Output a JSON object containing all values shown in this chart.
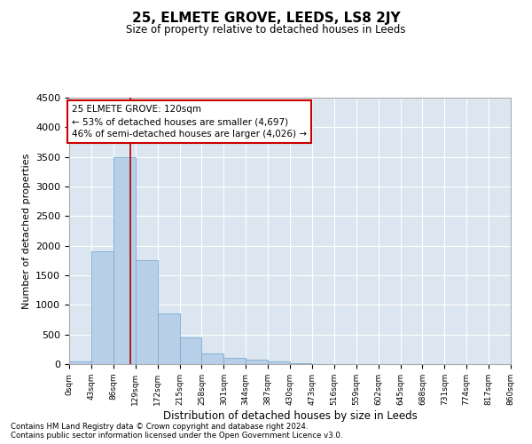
{
  "title": "25, ELMETE GROVE, LEEDS, LS8 2JY",
  "subtitle": "Size of property relative to detached houses in Leeds",
  "xlabel": "Distribution of detached houses by size in Leeds",
  "ylabel": "Number of detached properties",
  "bar_color": "#b8cfe8",
  "bar_edge_color": "#7aadd4",
  "background_color": "#dce6f0",
  "grid_color": "#ffffff",
  "vline_color": "#aa0000",
  "vline_x": 120,
  "annotation_box_color": "#cc0000",
  "annotation_line1": "25 ELMETE GROVE: 120sqm",
  "annotation_line2": "← 53% of detached houses are smaller (4,697)",
  "annotation_line3": "46% of semi-detached houses are larger (4,026) →",
  "bins": [
    0,
    43,
    86,
    129,
    172,
    215,
    258,
    301,
    344,
    387,
    430,
    473,
    516,
    559,
    602,
    645,
    688,
    731,
    774,
    817,
    860
  ],
  "bin_labels": [
    "0sqm",
    "43sqm",
    "86sqm",
    "129sqm",
    "172sqm",
    "215sqm",
    "258sqm",
    "301sqm",
    "344sqm",
    "387sqm",
    "430sqm",
    "473sqm",
    "516sqm",
    "559sqm",
    "602sqm",
    "645sqm",
    "688sqm",
    "731sqm",
    "774sqm",
    "817sqm",
    "860sqm"
  ],
  "values": [
    50,
    1900,
    3500,
    1750,
    850,
    450,
    175,
    100,
    75,
    50,
    10,
    5,
    3,
    2,
    2,
    1,
    1,
    0,
    0,
    0
  ],
  "ylim": [
    0,
    4500
  ],
  "yticks": [
    0,
    500,
    1000,
    1500,
    2000,
    2500,
    3000,
    3500,
    4000,
    4500
  ],
  "footer_line1": "Contains HM Land Registry data © Crown copyright and database right 2024.",
  "footer_line2": "Contains public sector information licensed under the Open Government Licence v3.0."
}
